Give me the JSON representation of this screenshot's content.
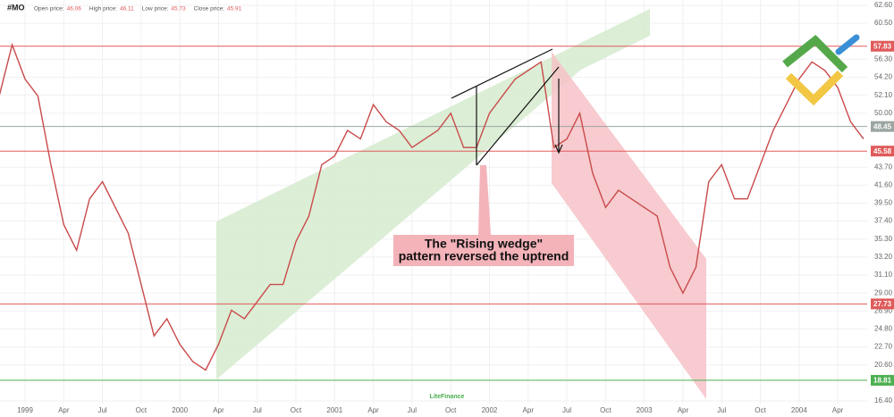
{
  "chart_data": {
    "type": "line",
    "symbol": "#MO",
    "ohlc": [
      {
        "label": "Open price:",
        "value": 46.06
      },
      {
        "label": "High price:",
        "value": 46.11
      },
      {
        "label": "Low price:",
        "value": 45.73
      },
      {
        "label": "Close price:",
        "value": 45.91
      }
    ],
    "annotation": [
      "The \"Rising wedge\"",
      "pattern reversed the uptrend"
    ],
    "watermark": "LiteFinance",
    "grid": true,
    "x": [
      "1998-11",
      "1998-12",
      "1999-01",
      "1999-02",
      "1999-03",
      "1999-04",
      "1999-05",
      "1999-06",
      "1999-07",
      "1999-08",
      "1999-09",
      "1999-10",
      "1999-11",
      "1999-12",
      "2000-01",
      "2000-02",
      "2000-03",
      "2000-04",
      "2000-05",
      "2000-06",
      "2000-07",
      "2000-08",
      "2000-09",
      "2000-10",
      "2000-11",
      "2000-12",
      "2001-01",
      "2001-02",
      "2001-03",
      "2001-04",
      "2001-05",
      "2001-06",
      "2001-07",
      "2001-08",
      "2001-09",
      "2001-10",
      "2001-11",
      "2001-12",
      "2002-01",
      "2002-02",
      "2002-03",
      "2002-04",
      "2002-05",
      "2002-06",
      "2002-07",
      "2002-08",
      "2002-09",
      "2002-10",
      "2002-11",
      "2002-12",
      "2003-01",
      "2003-02",
      "2003-03",
      "2003-04",
      "2003-05",
      "2003-06",
      "2003-07",
      "2003-08",
      "2003-09",
      "2003-10",
      "2003-11",
      "2003-12",
      "2004-01",
      "2004-02",
      "2004-03",
      "2004-04",
      "2004-05",
      "2004-06"
    ],
    "series": [
      {
        "name": "#MO",
        "color": "#c94a4a",
        "values": [
          52,
          58,
          54,
          52,
          44,
          37,
          34,
          40,
          42,
          39,
          36,
          30,
          24,
          26,
          23,
          21,
          20,
          23,
          27,
          26,
          28,
          30,
          30,
          35,
          38,
          44,
          45,
          48,
          47,
          51,
          49,
          48,
          46,
          47,
          48,
          50,
          46,
          46,
          50,
          52,
          54,
          55,
          56,
          46,
          47,
          50,
          43,
          39,
          41,
          40,
          39,
          38,
          32,
          29,
          32,
          42,
          44,
          40,
          40,
          44,
          48,
          51,
          54,
          56,
          55,
          53,
          49,
          47
        ]
      }
    ],
    "xticks": [
      {
        "value": "1999-01",
        "label": "1999"
      },
      {
        "value": "1999-04",
        "label": "Apr"
      },
      {
        "value": "1999-07",
        "label": "Jul"
      },
      {
        "value": "1999-10",
        "label": "Oct"
      },
      {
        "value": "2000-01",
        "label": "2000"
      },
      {
        "value": "2000-04",
        "label": "Apr"
      },
      {
        "value": "2000-07",
        "label": "Jul"
      },
      {
        "value": "2000-10",
        "label": "Oct"
      },
      {
        "value": "2001-01",
        "label": "2001"
      },
      {
        "value": "2001-04",
        "label": "Apr"
      },
      {
        "value": "2001-07",
        "label": "Jul"
      },
      {
        "value": "2001-10",
        "label": "Oct"
      },
      {
        "value": "2002-01",
        "label": "2002"
      },
      {
        "value": "2002-04",
        "label": "Apr"
      },
      {
        "value": "2002-07",
        "label": "Jul"
      },
      {
        "value": "2002-10",
        "label": "Oct"
      },
      {
        "value": "2003-01",
        "label": "2003"
      },
      {
        "value": "2003-04",
        "label": "Apr"
      },
      {
        "value": "2003-07",
        "label": "Jul"
      },
      {
        "value": "2003-10",
        "label": "Oct"
      },
      {
        "value": "2004-01",
        "label": "2004"
      },
      {
        "value": "2004-04",
        "label": "Apr"
      }
    ],
    "ylim": [
      16.4,
      62.6
    ],
    "yticks": [
      {
        "value": 16.4,
        "label": "16.40"
      },
      {
        "value": 20.6,
        "label": "20.60"
      },
      {
        "value": 22.7,
        "label": "22.70"
      },
      {
        "value": 24.8,
        "label": "24.80"
      },
      {
        "value": 26.9,
        "label": "26.90"
      },
      {
        "value": 29,
        "label": "29.00"
      },
      {
        "value": 31.1,
        "label": "31.10"
      },
      {
        "value": 33.2,
        "label": "33.20"
      },
      {
        "value": 35.3,
        "label": "35.30"
      },
      {
        "value": 37.4,
        "label": "37.40"
      },
      {
        "value": 39.5,
        "label": "39.50"
      },
      {
        "value": 41.6,
        "label": "41.60"
      },
      {
        "value": 43.7,
        "label": "43.70"
      },
      {
        "value": 50,
        "label": "50.00"
      },
      {
        "value": 52.1,
        "label": "52.10"
      },
      {
        "value": 54.2,
        "label": "54.20"
      },
      {
        "value": 56.3,
        "label": "56.30"
      },
      {
        "value": 60.5,
        "label": "60.50"
      },
      {
        "value": 62.6,
        "label": "62.60"
      }
    ],
    "levels": [
      {
        "value": 57.83,
        "color": "#e05a5a"
      },
      {
        "value": 48.45,
        "color": "#9aa5a0"
      },
      {
        "value": 45.58,
        "color": "#e05a5a"
      },
      {
        "value": 27.73,
        "color": "#e05a5a"
      },
      {
        "value": 18.81,
        "color": "#4caf50"
      }
    ]
  }
}
